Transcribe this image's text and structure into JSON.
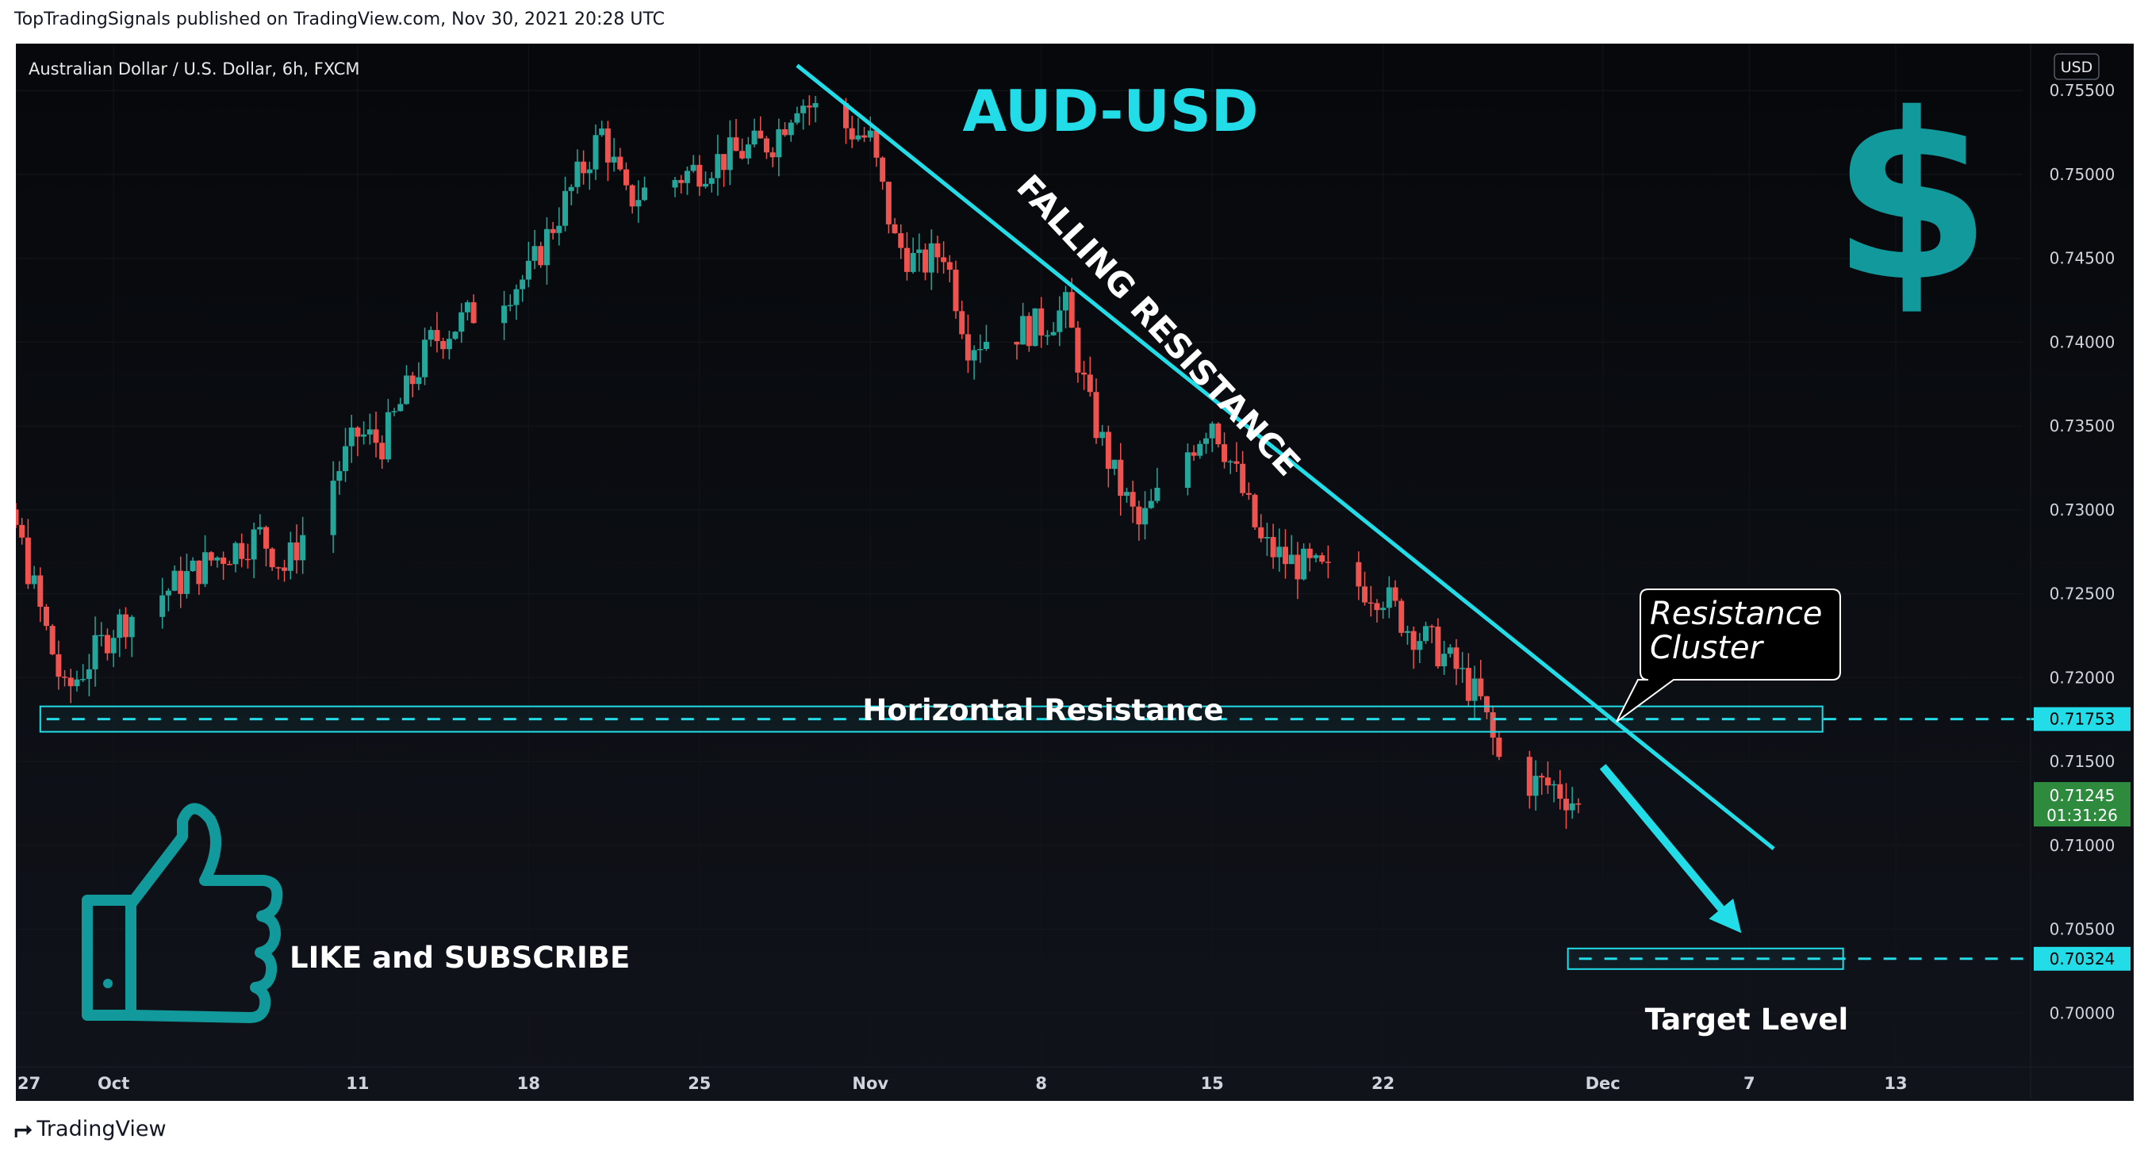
{
  "header": {
    "published_by": "TopTradingSignals published on TradingView.com, Nov 30, 2021 20:28 UTC"
  },
  "symbol": {
    "title": "Australian Dollar / U.S. Dollar, 6h, FXCM",
    "currency_button": "USD"
  },
  "annotations": {
    "pair_title": "AUD-USD",
    "dollar_symbol": "$",
    "falling_resistance": "FALLING RESISTANCE",
    "horizontal_resistance": "Horizontal Resistance",
    "callout_line1": "Resistance",
    "callout_line2": "Cluster",
    "target_level": "Target Level",
    "like_subscribe": "LIKE and SUBSCRIBE"
  },
  "price_labels": {
    "resistance": "0.71753",
    "current_price": "0.71245",
    "countdown": "01:31:26",
    "target": "0.70324"
  },
  "footer": {
    "brand": "TradingView",
    "brand_icon": "tradingview-logo-icon"
  },
  "colors": {
    "up": "#26a69a",
    "down": "#ef5350",
    "cyan": "#22dde8",
    "teal_icon": "#11999b",
    "current_price_bg": "#2e8b3e"
  },
  "chart_data": {
    "type": "candlestick",
    "ylim": [
      0.6968,
      0.7578
    ],
    "yticks": [
      "0.75500",
      "0.75000",
      "0.74500",
      "0.74000",
      "0.73500",
      "0.73000",
      "0.72500",
      "0.72000",
      "0.71500",
      "0.71000",
      "0.70500",
      "0.70000"
    ],
    "xticks": [
      "27",
      "Oct",
      "11",
      "18",
      "25",
      "Nov",
      "8",
      "15",
      "22",
      "Dec",
      "7",
      "13"
    ],
    "levels": {
      "horizontal_resistance": 0.71753,
      "target": 0.70324,
      "last_price": 0.71245
    },
    "falling_resistance_line": {
      "start": [
        "Oct 29",
        0.7565
      ],
      "end": [
        "Dec 8",
        0.7098
      ]
    },
    "waypoints": [
      [
        "Sep 24",
        0.7285
      ],
      [
        "Sep 27",
        0.729
      ],
      [
        "Sep 28",
        0.724
      ],
      [
        "Sep 29",
        0.719
      ],
      [
        "Sep 30",
        0.721
      ],
      [
        "Oct 1",
        0.723
      ],
      [
        "Oct 5",
        0.727
      ],
      [
        "Oct 7",
        0.7285
      ],
      [
        "Oct 8",
        0.7265
      ],
      [
        "Oct 11",
        0.7345
      ],
      [
        "Oct 12",
        0.734
      ],
      [
        "Oct 14",
        0.74
      ],
      [
        "Oct 18",
        0.744
      ],
      [
        "Oct 19",
        0.747
      ],
      [
        "Oct 21",
        0.7525
      ],
      [
        "Oct 22",
        0.7485
      ],
      [
        "Oct 26",
        0.751
      ],
      [
        "Oct 28",
        0.752
      ],
      [
        "Oct 29",
        0.7545
      ],
      [
        "Nov 1",
        0.752
      ],
      [
        "Nov 2",
        0.746
      ],
      [
        "Nov 3",
        0.7445
      ],
      [
        "Nov 4",
        0.7455
      ],
      [
        "Nov 5",
        0.74
      ],
      [
        "Nov 8",
        0.741
      ],
      [
        "Nov 9",
        0.742
      ],
      [
        "Nov 10",
        0.736
      ],
      [
        "Nov 11",
        0.732
      ],
      [
        "Nov 12",
        0.729
      ],
      [
        "Nov 14",
        0.7335
      ],
      [
        "Nov 15",
        0.7355
      ],
      [
        "Nov 16",
        0.732
      ],
      [
        "Nov 17",
        0.728
      ],
      [
        "Nov 18",
        0.727
      ],
      [
        "Nov 19",
        0.7265
      ],
      [
        "Nov 22",
        0.725
      ],
      [
        "Nov 23",
        0.723
      ],
      [
        "Nov 24",
        0.722
      ],
      [
        "Nov 25",
        0.7205
      ],
      [
        "Nov 26",
        0.7185
      ],
      [
        "Nov 27",
        0.714
      ],
      [
        "Nov 29",
        0.7135
      ],
      [
        "Nov 30",
        0.71245
      ]
    ]
  }
}
